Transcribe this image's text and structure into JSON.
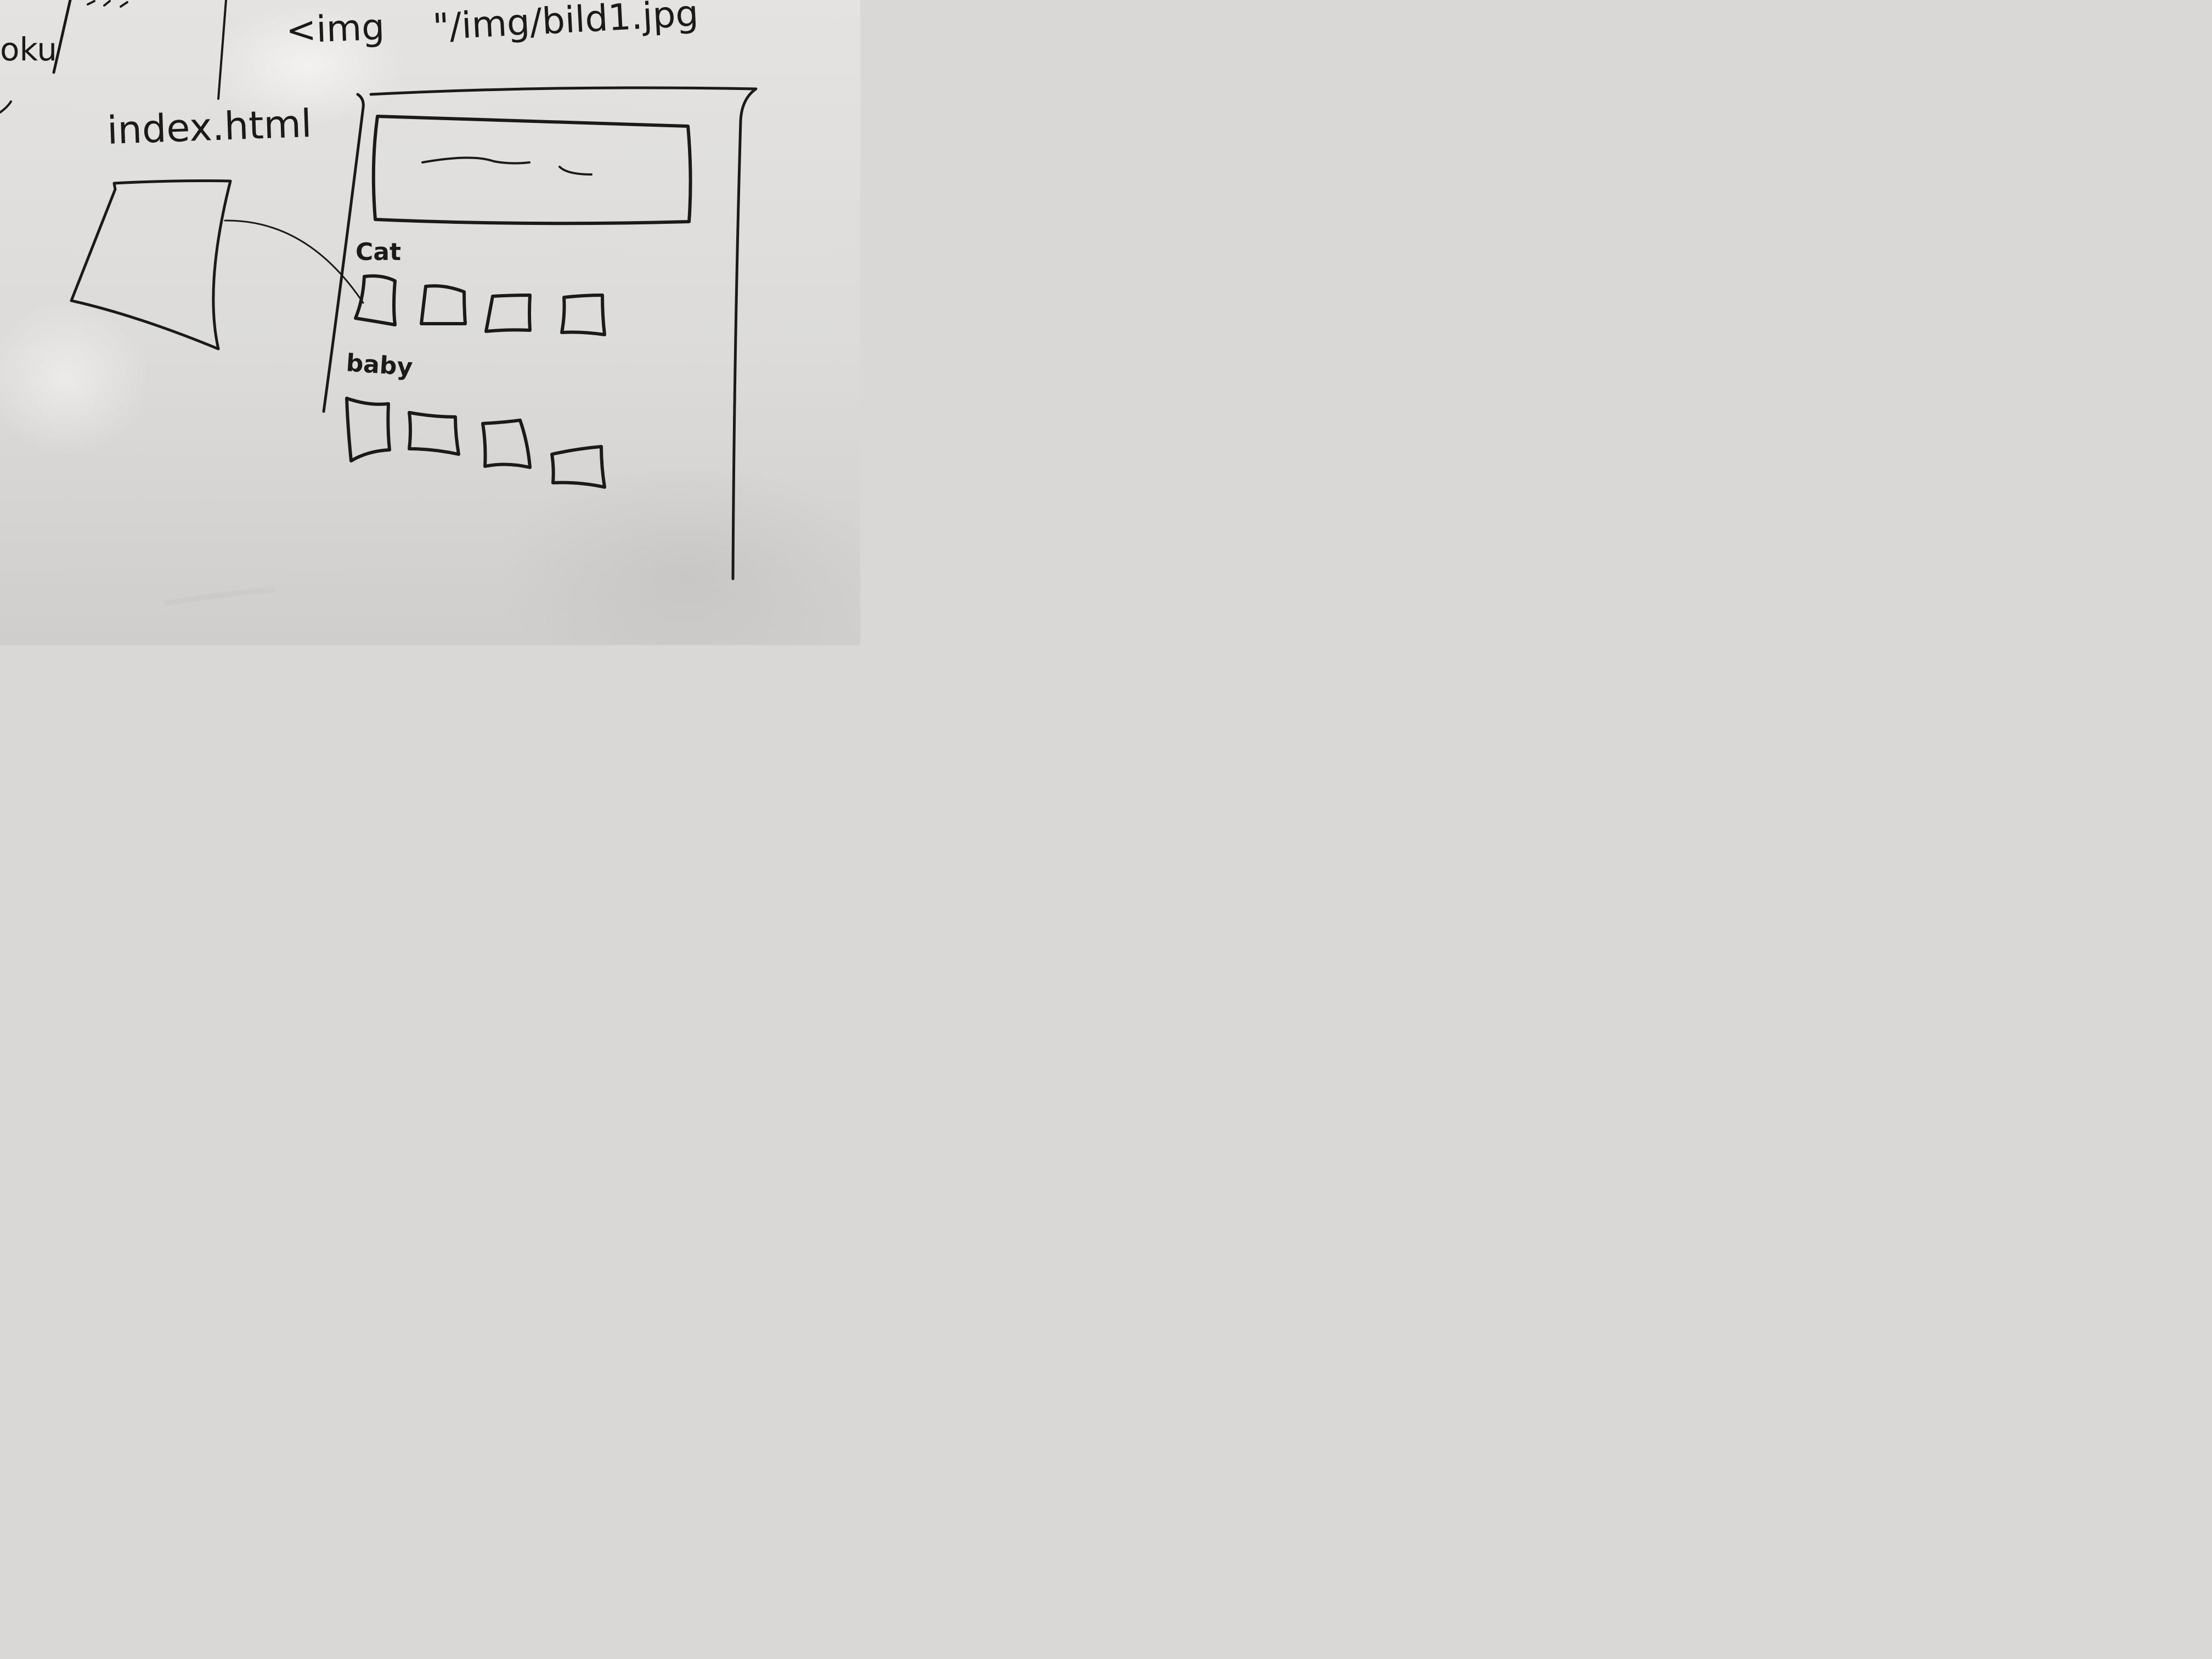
{
  "top_left_fragment": "oku",
  "img_tag": "<img",
  "img_path": "\"/img/bild1.jpg",
  "file_label": "index.html",
  "section_1_label": "Cat",
  "section_2_label": "baby",
  "ink_color": "#1c1a19",
  "board_color": "#e2e1df"
}
